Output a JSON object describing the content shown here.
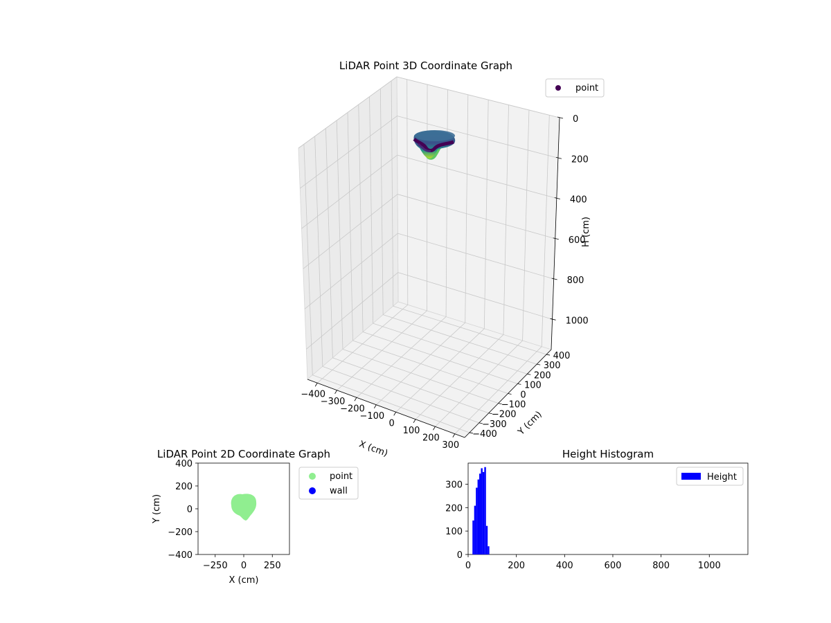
{
  "chart_data": [
    {
      "type": "scatter",
      "title": "LiDAR Point 3D Coordinate Graph",
      "xlabel": "X (cm)",
      "ylabel": "Y (cm)",
      "zlabel": "H (cm)",
      "xticks": [
        "−400",
        "−300",
        "−200",
        "−100",
        "0",
        "100",
        "200",
        "300"
      ],
      "yticks": [
        "−400",
        "−300",
        "−200",
        "−100",
        "0",
        "100",
        "200",
        "300",
        "400"
      ],
      "zticks": [
        "0",
        "200",
        "400",
        "600",
        "800",
        "1000"
      ],
      "xlim": [
        -400,
        400
      ],
      "ylim": [
        -400,
        400
      ],
      "zlim": [
        1150,
        0
      ],
      "grid": true,
      "legend": {
        "placement": "top-right",
        "entries": [
          {
            "label": "point",
            "color": "#440154"
          }
        ]
      },
      "series": [
        {
          "name": "point",
          "colormap": "viridis",
          "region": {
            "x_center": 0,
            "y_center": 0,
            "radius": 110,
            "h_min": 30,
            "h_max": 95
          }
        }
      ]
    },
    {
      "type": "scatter",
      "title": "LiDAR Point 2D Coordinate Graph",
      "xlabel": "X (cm)",
      "ylabel": "Y (cm)",
      "xticks": [
        "−250",
        "0",
        "250"
      ],
      "yticks": [
        "−400",
        "−200",
        "0",
        "200",
        "400"
      ],
      "xlim": [
        -400,
        400
      ],
      "ylim": [
        -400,
        400
      ],
      "legend": {
        "placement": "outside-right",
        "entries": [
          {
            "label": "point",
            "color": "#90ee90"
          },
          {
            "label": "wall",
            "color": "#0000ff"
          }
        ]
      },
      "series": [
        {
          "name": "point",
          "color": "#90ee90",
          "region": {
            "x_center": 0,
            "y_center": 10,
            "radius": 110
          }
        },
        {
          "name": "wall",
          "color": "#0000ff",
          "points": []
        }
      ]
    },
    {
      "type": "bar",
      "title": "Height Histogram",
      "xticks": [
        "0",
        "200",
        "400",
        "600",
        "800",
        "1000"
      ],
      "yticks": [
        "0",
        "100",
        "200",
        "300"
      ],
      "xlim": [
        0,
        1160
      ],
      "ylim": [
        0,
        390
      ],
      "legend": {
        "placement": "top-right",
        "entries": [
          {
            "label": "Height",
            "color": "#0000ff"
          }
        ]
      },
      "bins": [
        {
          "x0": 18,
          "x1": 25,
          "value": 145
        },
        {
          "x0": 25,
          "x1": 32,
          "value": 208
        },
        {
          "x0": 32,
          "x1": 39,
          "value": 285
        },
        {
          "x0": 39,
          "x1": 46,
          "value": 320
        },
        {
          "x0": 46,
          "x1": 53,
          "value": 345
        },
        {
          "x0": 53,
          "x1": 60,
          "value": 368
        },
        {
          "x0": 60,
          "x1": 67,
          "value": 352
        },
        {
          "x0": 67,
          "x1": 74,
          "value": 373
        },
        {
          "x0": 74,
          "x1": 81,
          "value": 122
        },
        {
          "x0": 81,
          "x1": 88,
          "value": 35
        }
      ]
    }
  ]
}
